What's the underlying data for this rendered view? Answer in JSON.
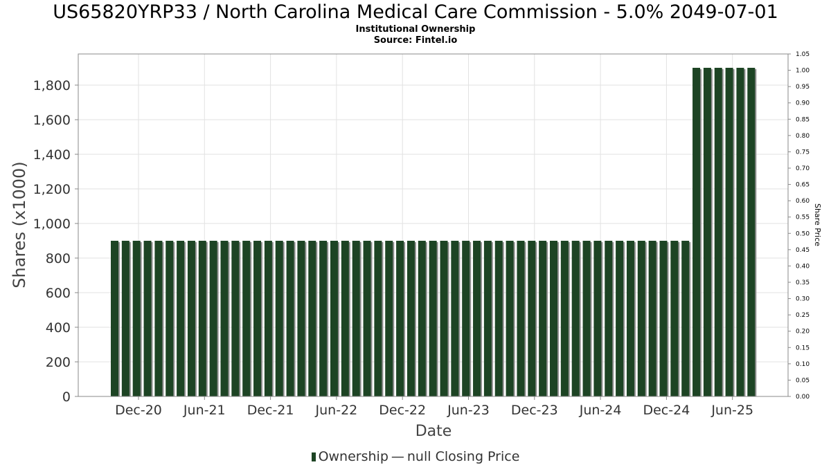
{
  "header": {
    "title": "US65820YRP33 / North Carolina Medical Care Commission - 5.0% 2049-07-01",
    "subtitle": "Institutional Ownership",
    "source": "Source: Fintel.io"
  },
  "legend": {
    "ownership_label": "Ownership",
    "dash": "—",
    "price_label": "null Closing Price"
  },
  "colors": {
    "bar": "#1d4424",
    "bar_shadow": "#8f8f8f",
    "grid": "#e2e2e2"
  },
  "chart_data": {
    "type": "bar",
    "title": "US65820YRP33 / North Carolina Medical Care Commission - 5.0% 2049-07-01",
    "subtitle": "Institutional Ownership",
    "xlabel": "Date",
    "ylabel": "Shares (x1000)",
    "y2label": "Share Price",
    "ylim": [
      0,
      1980
    ],
    "y2lim": [
      0,
      1.05
    ],
    "yticks": [
      0,
      200,
      400,
      600,
      800,
      1000,
      1200,
      1400,
      1600,
      1800
    ],
    "ytick_labels": [
      "0",
      "200",
      "400",
      "600",
      "800",
      "1,000",
      "1,200",
      "1,400",
      "1,600",
      "1,800"
    ],
    "y2ticks": [
      0,
      0.05,
      0.1,
      0.15,
      0.2,
      0.25,
      0.3,
      0.35,
      0.4,
      0.45,
      0.5,
      0.55,
      0.6,
      0.65,
      0.7,
      0.75,
      0.8,
      0.85,
      0.9,
      0.95,
      1.0,
      1.05
    ],
    "y2tick_labels": [
      "0.00",
      "0.05",
      "0.10",
      "0.15",
      "0.20",
      "0.25",
      "0.30",
      "0.35",
      "0.40",
      "0.45",
      "0.50",
      "0.55",
      "0.60",
      "0.65",
      "0.70",
      "0.75",
      "0.80",
      "0.85",
      "0.90",
      "0.95",
      "1.00",
      "1.05"
    ],
    "xtick_labels": [
      "Dec-20",
      "Jun-21",
      "Dec-21",
      "Jun-22",
      "Dec-22",
      "Jun-23",
      "Dec-23",
      "Jun-24",
      "Dec-24",
      "Jun-25"
    ],
    "grid": true,
    "legend_position": "bottom",
    "series": [
      {
        "name": "Ownership",
        "values": [
          900,
          900,
          900,
          900,
          900,
          900,
          900,
          900,
          900,
          900,
          900,
          900,
          900,
          900,
          900,
          900,
          900,
          900,
          900,
          900,
          900,
          900,
          900,
          900,
          900,
          900,
          900,
          900,
          900,
          900,
          900,
          900,
          900,
          900,
          900,
          900,
          900,
          900,
          900,
          900,
          900,
          900,
          900,
          900,
          900,
          900,
          900,
          900,
          900,
          900,
          900,
          900,
          900,
          1900,
          1900,
          1900,
          1900,
          1900,
          1900
        ]
      }
    ]
  }
}
